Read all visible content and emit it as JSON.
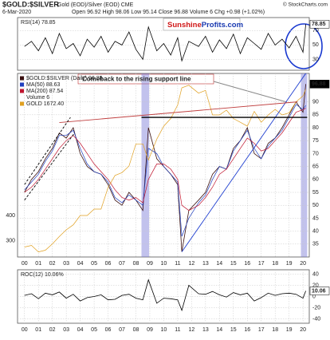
{
  "header": {
    "title": "$GOLD:$SILVER",
    "subtitle": "Gold (EOD)/Silver (EOD) CME",
    "credit": "© StockCharts.com",
    "date": "6-Mar-2020",
    "quote": "Open 96.92 High 98.06 Low 95.14 Close 96.88 Volume 6 Chg +0.98 (+1.02%)",
    "logo_a": "Sunshine",
    "logo_b": "Profits.com"
  },
  "chart_data": [
    {
      "type": "line",
      "label": "RSI(14) 78.85",
      "last_value_label": "78.85",
      "x": [
        2000,
        2000.5,
        2001,
        2001.5,
        2002,
        2002.5,
        2003,
        2003.5,
        2004,
        2004.5,
        2005,
        2005.5,
        2006,
        2006.5,
        2007,
        2007.5,
        2008,
        2008.5,
        2008.9,
        2009.5,
        2010,
        2010.5,
        2011,
        2011.3,
        2011.8,
        2012.5,
        2013,
        2013.5,
        2014,
        2014.5,
        2015,
        2015.5,
        2016,
        2016.5,
        2017,
        2017.5,
        2018,
        2018.5,
        2019,
        2019.5,
        2020,
        2020.2
      ],
      "xlim": [
        1999.5,
        2020.45
      ],
      "ylim": [
        15,
        88
      ],
      "yticks": [
        30,
        50,
        70
      ],
      "grid": true,
      "series": [
        {
          "name": "RSI(14)",
          "color": "#000000",
          "values": [
            48,
            55,
            42,
            60,
            38,
            66,
            45,
            52,
            35,
            58,
            47,
            62,
            40,
            55,
            50,
            68,
            44,
            30,
            75,
            42,
            52,
            36,
            60,
            28,
            55,
            48,
            62,
            40,
            57,
            45,
            65,
            38,
            60,
            52,
            44,
            66,
            50,
            58,
            46,
            62,
            40,
            78.85
          ]
        }
      ]
    },
    {
      "type": "line",
      "last_value_label": "96.88",
      "volume_label": "Volume 6",
      "annotation": "Comeback to the rising support line",
      "x": [
        2000,
        2000.5,
        2001,
        2001.5,
        2002,
        2002.5,
        2003,
        2003.5,
        2004,
        2004.5,
        2005,
        2005.5,
        2006,
        2006.5,
        2007,
        2007.5,
        2008,
        2008.5,
        2008.9,
        2009.5,
        2010,
        2010.5,
        2011,
        2011.3,
        2011.8,
        2012.5,
        2013,
        2013.5,
        2014,
        2014.5,
        2015,
        2015.5,
        2016,
        2016.5,
        2017,
        2017.5,
        2018,
        2018.5,
        2019,
        2019.5,
        2020,
        2020.2
      ],
      "xlim": [
        1999.5,
        2020.45
      ],
      "xticks": [
        {
          "value": 2000,
          "label": "00"
        },
        {
          "value": 2001,
          "label": "01"
        },
        {
          "value": 2002,
          "label": "02"
        },
        {
          "value": 2003,
          "label": "03"
        },
        {
          "value": 2004,
          "label": "04"
        },
        {
          "value": 2005,
          "label": "05"
        },
        {
          "value": 2006,
          "label": "06"
        },
        {
          "value": 2007,
          "label": "07"
        },
        {
          "value": 2008,
          "label": "08"
        },
        {
          "value": 2009,
          "label": "09"
        },
        {
          "value": 2010,
          "label": "10"
        },
        {
          "value": 2011,
          "label": "11"
        },
        {
          "value": 2012,
          "label": "12"
        },
        {
          "value": 2013,
          "label": "13"
        },
        {
          "value": 2014,
          "label": "14"
        },
        {
          "value": 2015,
          "label": "15"
        },
        {
          "value": 2016,
          "label": "16"
        },
        {
          "value": 2017,
          "label": "17"
        },
        {
          "value": 2018,
          "label": "18"
        },
        {
          "value": 2019,
          "label": "19"
        },
        {
          "value": 2020,
          "label": "20"
        }
      ],
      "ylim": [
        30,
        101
      ],
      "yticks": [
        35,
        40,
        45,
        50,
        55,
        60,
        65,
        70,
        75,
        80,
        85,
        90
      ],
      "y2lim": [
        250,
        2000
      ],
      "y2log": true,
      "y2ticks": [
        300,
        400
      ],
      "grid": true,
      "series": [
        {
          "name": "$GOLD:$SILVER (Daily) 96.88",
          "color": "#3a1010",
          "values": [
            55,
            60,
            63,
            68,
            72,
            78,
            76,
            80,
            70,
            65,
            63,
            62,
            58,
            52,
            50,
            55,
            52,
            48,
            80,
            68,
            65,
            62,
            58,
            32,
            48,
            52,
            55,
            62,
            65,
            64,
            72,
            75,
            80,
            70,
            68,
            74,
            76,
            80,
            85,
            90,
            86,
            96.88
          ]
        },
        {
          "name": "MA(50) 88.63",
          "color": "#2040c0",
          "values": [
            56,
            59,
            62,
            67,
            71,
            77,
            77,
            79,
            72,
            66,
            63,
            62,
            59,
            53,
            51,
            54,
            52,
            50,
            72,
            70,
            65,
            62,
            59,
            38,
            45,
            51,
            54,
            60,
            65,
            64,
            71,
            75,
            79,
            72,
            68,
            73,
            76,
            79,
            84,
            89,
            87,
            88.63
          ]
        },
        {
          "name": "MA(200) 87.54",
          "color": "#c0142e",
          "values": [
            55,
            57,
            60,
            64,
            68,
            72,
            75,
            77,
            74,
            70,
            66,
            63,
            60,
            56,
            53,
            52,
            53,
            51,
            60,
            66,
            66,
            64,
            60,
            50,
            48,
            50,
            53,
            57,
            62,
            64,
            68,
            72,
            76,
            74,
            71,
            72,
            75,
            78,
            82,
            86,
            87,
            87.54
          ]
        },
        {
          "name": "GOLD 1672.40",
          "color": "#e0a020",
          "axis": "y2",
          "values": [
            280,
            285,
            265,
            270,
            290,
            315,
            340,
            360,
            400,
            400,
            430,
            430,
            550,
            630,
            650,
            700,
            900,
            900,
            750,
            950,
            1100,
            1200,
            1400,
            1700,
            1750,
            1600,
            1650,
            1250,
            1250,
            1320,
            1200,
            1150,
            1100,
            1300,
            1150,
            1250,
            1330,
            1250,
            1280,
            1450,
            1550,
            1672.4
          ]
        }
      ],
      "highlights": [
        [
          2008.4,
          2008.95
        ],
        [
          2019.85,
          2020.3
        ]
      ],
      "trendlines": [
        {
          "color": "#2040d0",
          "x": [
            2011.3,
            2020.2
          ],
          "y": [
            32,
            101
          ]
        },
        {
          "color": "#c04040",
          "x": [
            2002.5,
            2019.6
          ],
          "y": [
            82,
            90
          ]
        },
        {
          "color": "#000000",
          "x": [
            2008.4,
            2020.3
          ],
          "y": [
            84,
            84
          ]
        },
        {
          "color": "#000000",
          "x": [
            2000,
            2003.3
          ],
          "y": [
            58,
            84
          ]
        },
        {
          "color": "#000000",
          "x": [
            2000,
            2003.6
          ],
          "y": [
            52,
            78
          ]
        }
      ]
    },
    {
      "type": "line",
      "label": "ROC(12) 10.06%",
      "last_value_label": "10.06",
      "x": [
        2000,
        2000.5,
        2001,
        2001.5,
        2002,
        2002.5,
        2003,
        2003.5,
        2004,
        2004.5,
        2005,
        2005.5,
        2006,
        2006.5,
        2007,
        2007.5,
        2008,
        2008.5,
        2008.9,
        2009.5,
        2010,
        2010.5,
        2011,
        2011.3,
        2011.8,
        2012.5,
        2013,
        2013.5,
        2014,
        2014.5,
        2015,
        2015.5,
        2016,
        2016.5,
        2017,
        2017.5,
        2018,
        2018.5,
        2019,
        2019.5,
        2020,
        2020.2
      ],
      "xlim": [
        1999.5,
        2020.45
      ],
      "xticks": [
        {
          "value": 2000,
          "label": "00"
        },
        {
          "value": 2001,
          "label": "01"
        },
        {
          "value": 2002,
          "label": "02"
        },
        {
          "value": 2003,
          "label": "03"
        },
        {
          "value": 2004,
          "label": "04"
        },
        {
          "value": 2005,
          "label": "05"
        },
        {
          "value": 2006,
          "label": "06"
        },
        {
          "value": 2007,
          "label": "07"
        },
        {
          "value": 2008,
          "label": "08"
        },
        {
          "value": 2009,
          "label": "09"
        },
        {
          "value": 2010,
          "label": "10"
        },
        {
          "value": 2011,
          "label": "11"
        },
        {
          "value": 2012,
          "label": "12"
        },
        {
          "value": 2013,
          "label": "13"
        },
        {
          "value": 2014,
          "label": "14"
        },
        {
          "value": 2015,
          "label": "15"
        },
        {
          "value": 2016,
          "label": "16"
        },
        {
          "value": 2017,
          "label": "17"
        },
        {
          "value": 2018,
          "label": "18"
        },
        {
          "value": 2019,
          "label": "19"
        },
        {
          "value": 2020,
          "label": "20"
        }
      ],
      "ylim": [
        -48,
        48
      ],
      "yticks": [
        -40,
        -20,
        0,
        20,
        40
      ],
      "grid": true,
      "series": [
        {
          "name": "ROC(12)",
          "color": "#000000",
          "values": [
            2,
            5,
            -4,
            6,
            3,
            8,
            -3,
            4,
            -8,
            -2,
            0,
            3,
            -6,
            -5,
            2,
            4,
            -3,
            -6,
            30,
            -12,
            -3,
            -4,
            -6,
            -25,
            20,
            5,
            4,
            9,
            3,
            -1,
            7,
            3,
            6,
            -8,
            -2,
            6,
            2,
            5,
            6,
            4,
            -3,
            10.06
          ]
        }
      ]
    }
  ]
}
